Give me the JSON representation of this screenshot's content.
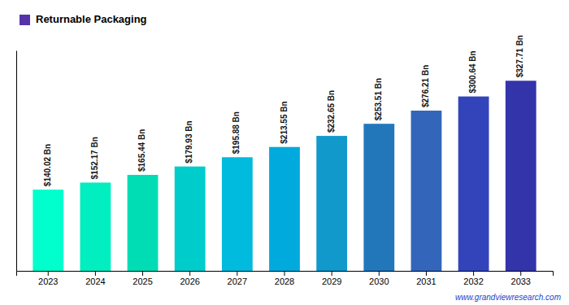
{
  "chart_data": {
    "type": "bar",
    "categories": [
      "2023",
      "2024",
      "2025",
      "2026",
      "2027",
      "2028",
      "2029",
      "2030",
      "2031",
      "2032",
      "2033"
    ],
    "series": [
      {
        "name": "Returnable Packaging",
        "color": "#5533AA",
        "colors": [
          "#00FFCC",
          "#00EEC0",
          "#00DDB5",
          "#00CCCC",
          "#00BBDD",
          "#00AADD",
          "#1199CC",
          "#2277BB",
          "#3366BB",
          "#3344BB",
          "#3333AA"
        ],
        "values": [
          140.02,
          152.17,
          165.44,
          179.93,
          195.88,
          213.55,
          232.65,
          253.51,
          276.21,
          300.64,
          327.71
        ],
        "value_labels": [
          "$140.02 Bn",
          "$152.17 Bn",
          "$165.44 Bn",
          "$179.93 Bn",
          "$195.88 Bn",
          "$213.55 Bn",
          "$232.65 Bn",
          "$253.51 Bn",
          "$276.21 Bn",
          "$300.64 Bn",
          "$327.71 Bn"
        ]
      }
    ],
    "ylim": [
      0,
      380
    ],
    "data_labels": true,
    "tick_labels": "x",
    "legend": "top-left",
    "annotations": [
      "www.grandviewresearch.com"
    ]
  }
}
